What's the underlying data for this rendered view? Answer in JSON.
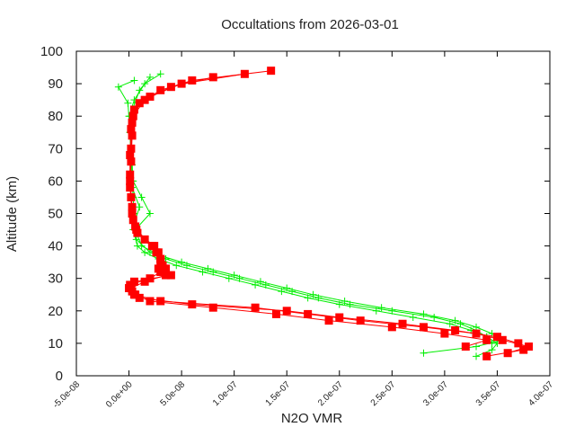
{
  "chart_data": {
    "type": "scatter",
    "title": "Occultations from 2026-03-01",
    "xlabel": "N2O VMR",
    "ylabel": "Altitude (km)",
    "xlim": [
      -5e-08,
      4e-07
    ],
    "ylim": [
      0,
      100
    ],
    "xticks": [
      -5e-08,
      0,
      5e-08,
      1e-07,
      1.5e-07,
      2e-07,
      2.5e-07,
      3e-07,
      3.5e-07,
      4e-07
    ],
    "xtick_labels": [
      "-5.0e-08",
      "0.0e+00",
      "5.0e-08",
      "1.0e-07",
      "1.5e-07",
      "2.0e-07",
      "2.5e-07",
      "3.0e-07",
      "3.5e-07",
      "4.0e-07"
    ],
    "yticks": [
      0,
      10,
      20,
      30,
      40,
      50,
      60,
      70,
      80,
      90,
      100
    ],
    "ytick_labels": [
      "0",
      "10",
      "20",
      "30",
      "40",
      "50",
      "60",
      "70",
      "80",
      "90",
      "100"
    ],
    "grid": false,
    "series": [
      {
        "color": "#00ee00",
        "marker": "plus",
        "profiles": [
          {
            "y": [
              6,
              8,
              10,
              12,
              14,
              16,
              18,
              20,
              22,
              24,
              26,
              28,
              30,
              32,
              34,
              36,
              38,
              40,
              45,
              50,
              55,
              60,
              65,
              70,
              75,
              80,
              85,
              90,
              93
            ],
            "x": [
              3.3e-07,
              3.45e-07,
              3.5e-07,
              3.4e-07,
              3.25e-07,
              3.05e-07,
              2.7e-07,
              2.35e-07,
              2e-07,
              1.7e-07,
              1.45e-07,
              1.2e-07,
              9.5e-08,
              7e-08,
              4.5e-08,
              2.8e-08,
              1.5e-08,
              8e-09,
              4e-09,
              5e-09,
              4e-09,
              3e-09,
              3e-09,
              2e-09,
              1e-09,
              0,
              5e-09,
              1.5e-08,
              3e-08
            ]
          },
          {
            "y": [
              7,
              9,
              11,
              13,
              15,
              17,
              19,
              21,
              23,
              25,
              27,
              29,
              31,
              33,
              35,
              37,
              40,
              45,
              50,
              55,
              60,
              70,
              80,
              88,
              92
            ],
            "x": [
              2.8e-07,
              3.3e-07,
              3.55e-07,
              3.45e-07,
              3.3e-07,
              3.1e-07,
              2.8e-07,
              2.4e-07,
              2.05e-07,
              1.75e-07,
              1.5e-07,
              1.25e-07,
              1e-07,
              7.5e-08,
              5e-08,
              3e-08,
              1.2e-08,
              6e-09,
              2e-08,
              1.2e-08,
              4e-09,
              2e-09,
              1e-09,
              1e-08,
              2e-08
            ]
          },
          {
            "y": [
              10,
              12,
              14,
              16,
              18,
              20,
              22,
              24,
              26,
              28,
              30,
              32,
              34,
              36,
              38,
              42,
              47,
              52,
              58,
              65,
              75,
              84,
              89,
              91
            ],
            "x": [
              3.45e-07,
              3.4e-07,
              3.3e-07,
              3.15e-07,
              2.9e-07,
              2.5e-07,
              2.1e-07,
              1.8e-07,
              1.55e-07,
              1.3e-07,
              1.05e-07,
              8e-08,
              5.5e-08,
              3.5e-08,
              2e-08,
              7e-09,
              5e-09,
              1e-08,
              3e-09,
              2e-09,
              1e-09,
              -1e-09,
              -1e-08,
              5e-09
            ]
          }
        ]
      },
      {
        "color": "#ff0000",
        "marker": "square",
        "profiles": [
          {
            "y": [
              6,
              8,
              10,
              12,
              14,
              16,
              18,
              20,
              22,
              24,
              26,
              28,
              30,
              32,
              34,
              36,
              38,
              40,
              44,
              48,
              55,
              62,
              70,
              78,
              84,
              88,
              91,
              94
            ],
            "x": [
              3.4e-07,
              3.75e-07,
              3.7e-07,
              3.5e-07,
              3.1e-07,
              2.6e-07,
              2e-07,
              1.5e-07,
              6e-08,
              1e-08,
              3e-09,
              1e-09,
              2e-08,
              3e-08,
              3.2e-08,
              3e-08,
              2.8e-08,
              2.4e-08,
              8e-09,
              4e-09,
              2e-09,
              1e-09,
              2e-09,
              3e-09,
              1e-08,
              3e-08,
              6e-08,
              1.35e-07
            ]
          },
          {
            "y": [
              7,
              9,
              11,
              13,
              15,
              17,
              19,
              21,
              23,
              25,
              27,
              29,
              31,
              33,
              35,
              38,
              42,
              46,
              52,
              60,
              68,
              76,
              82,
              86,
              90,
              93
            ],
            "x": [
              3.6e-07,
              3.8e-07,
              3.55e-07,
              3.3e-07,
              2.8e-07,
              2.2e-07,
              1.7e-07,
              1.2e-07,
              3e-08,
              5e-09,
              0,
              5e-09,
              4e-08,
              2.8e-08,
              3e-08,
              2.6e-08,
              1.5e-08,
              6e-09,
              3e-09,
              1e-09,
              1e-09,
              2e-09,
              5e-09,
              2e-08,
              5e-08,
              1.1e-07
            ]
          },
          {
            "y": [
              9,
              11,
              13,
              15,
              17,
              19,
              21,
              23,
              25,
              27,
              29,
              31,
              33,
              36,
              40,
              45,
              50,
              58,
              66,
              74,
              80,
              85,
              89,
              92
            ],
            "x": [
              3.2e-07,
              3.4e-07,
              3e-07,
              2.5e-07,
              1.9e-07,
              1.4e-07,
              8e-08,
              2e-08,
              6e-09,
              2e-09,
              1.5e-08,
              3.5e-08,
              3.5e-08,
              3e-08,
              2.2e-08,
              7e-09,
              3e-09,
              1e-09,
              2e-09,
              3e-09,
              4e-09,
              1.5e-08,
              4e-08,
              8e-08
            ]
          }
        ]
      }
    ]
  }
}
